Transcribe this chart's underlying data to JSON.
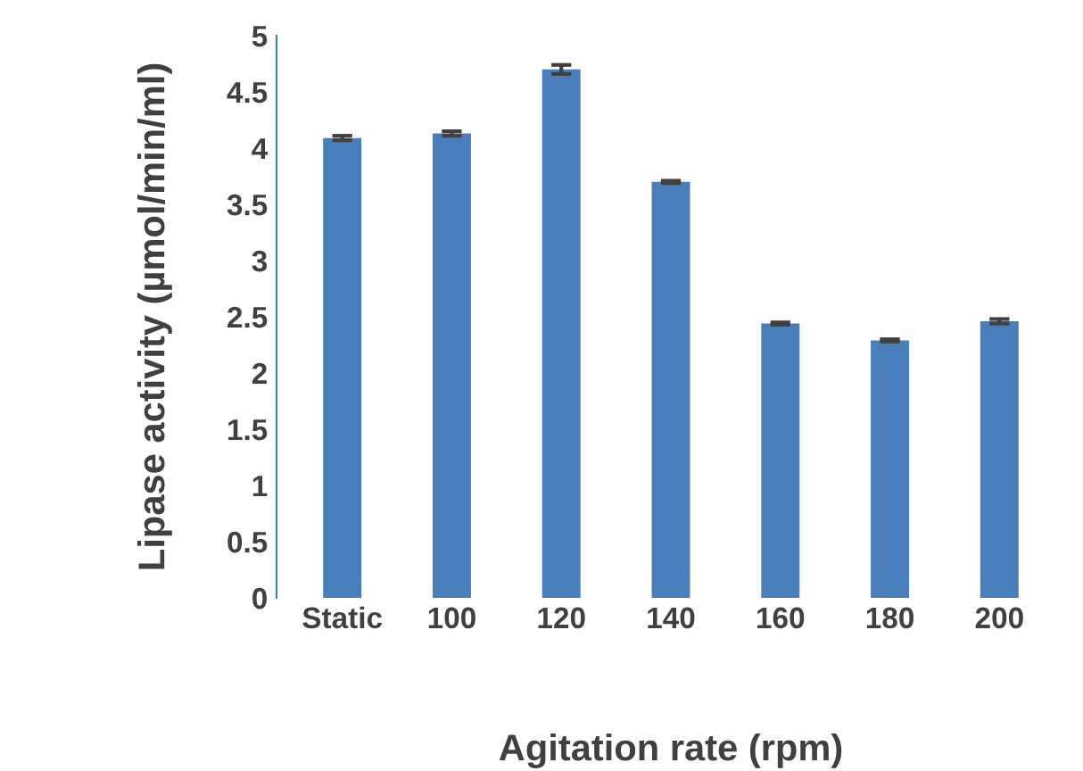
{
  "chart_data": {
    "type": "bar",
    "xlabel": "Agitation rate (rpm)",
    "ylabel": "Lipase activity (µmol/min/ml)",
    "categories": [
      "Static",
      "100",
      "120",
      "140",
      "160",
      "180",
      "200"
    ],
    "values": [
      4.09,
      4.13,
      4.7,
      3.7,
      2.44,
      2.29,
      2.46
    ],
    "errors": [
      0.02,
      0.02,
      0.04,
      0.01,
      0.01,
      0.01,
      0.02
    ],
    "color": "#4a7ebb",
    "ylim": [
      0,
      5
    ],
    "yticks": [
      0,
      0.5,
      1,
      1.5,
      2,
      2.5,
      3,
      3.5,
      4,
      4.5,
      5
    ],
    "grid": false,
    "legend": false
  }
}
